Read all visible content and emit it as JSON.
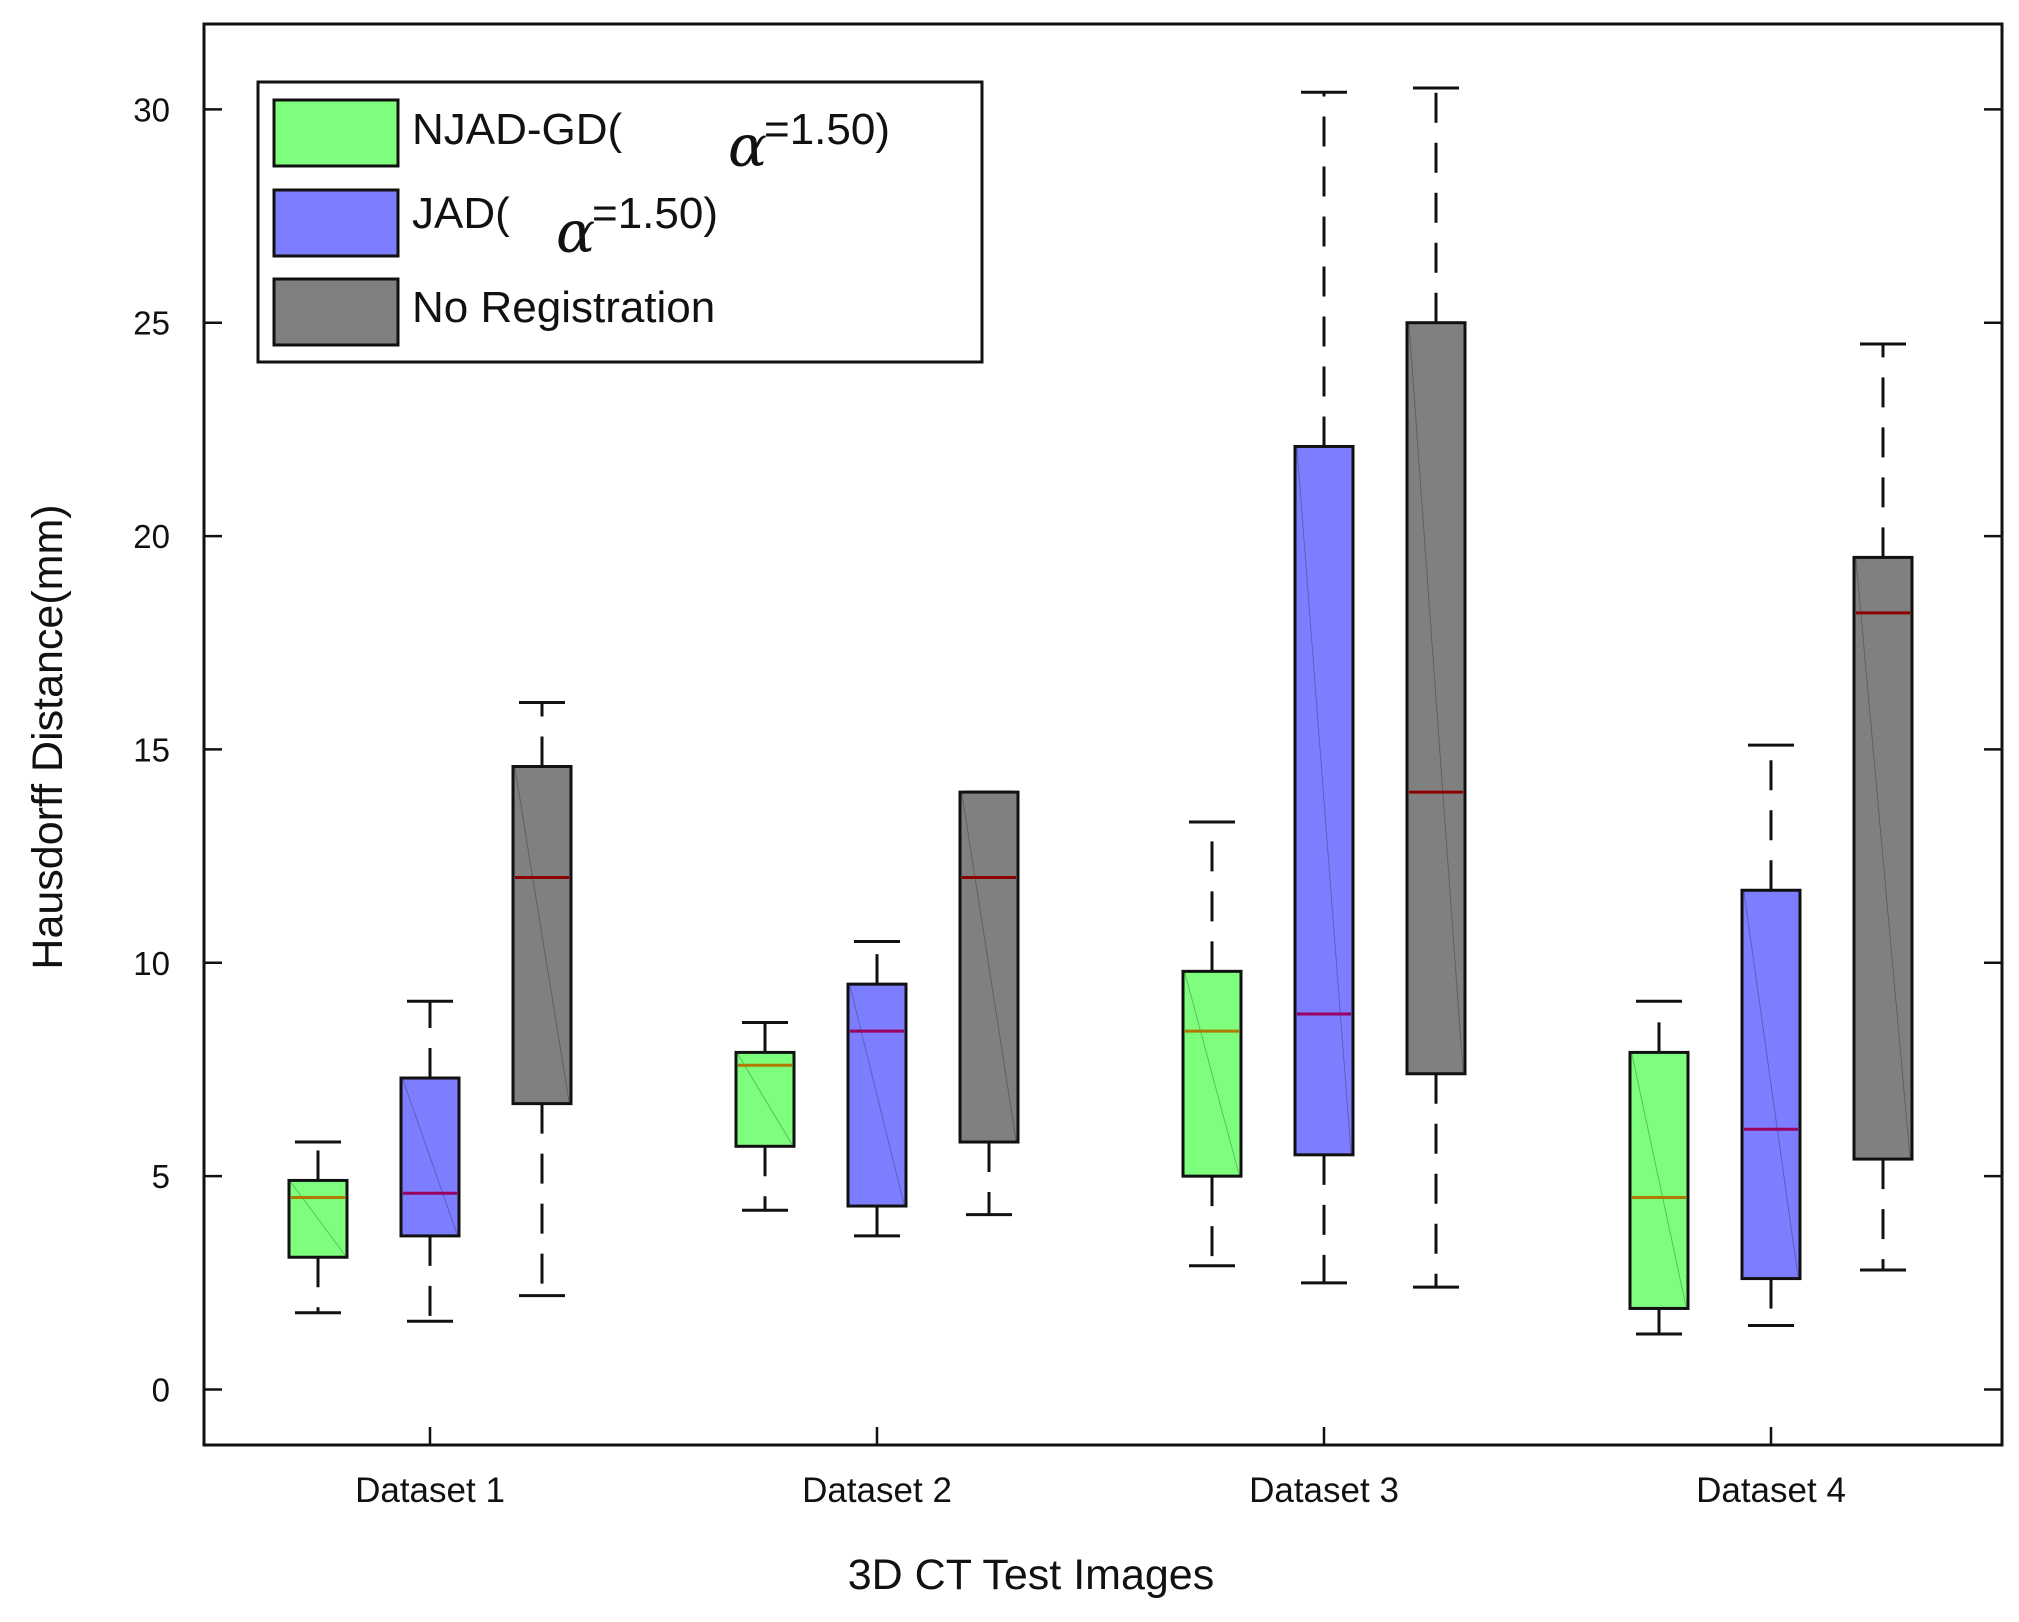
{
  "chart_data": {
    "type": "box",
    "title": "",
    "xlabel": "3D CT Test Images",
    "ylabel": "Hausdorff Distance(mm)",
    "ylim": [
      -1.3,
      32
    ],
    "yticks": [
      0,
      5,
      10,
      15,
      20,
      25,
      30
    ],
    "ytick_labels": [
      "0",
      "5",
      "10",
      "15",
      "20",
      "25",
      "30"
    ],
    "categories": [
      "Dataset 1",
      "Dataset 2",
      "Dataset 3",
      "Dataset 4"
    ],
    "legend": {
      "position": "top-left",
      "entries": [
        {
          "prefix": "NJAD-GD(",
          "symbol": "α",
          "suffix": "=1.50)"
        },
        {
          "prefix": "JAD(",
          "symbol": "α",
          "suffix": "=1.50)"
        },
        {
          "prefix": "No Registration",
          "symbol": "",
          "suffix": ""
        }
      ]
    },
    "series": [
      {
        "name": "NJAD-GD(α=1.50)",
        "fill": "#7dff7d",
        "median_color": "#b07a00",
        "boxes": [
          {
            "min": 1.8,
            "q1": 3.1,
            "median": 4.5,
            "q3": 4.9,
            "max": 5.8
          },
          {
            "min": 4.2,
            "q1": 5.7,
            "median": 7.6,
            "q3": 7.9,
            "max": 8.6
          },
          {
            "min": 2.9,
            "q1": 5.0,
            "median": 8.4,
            "q3": 9.8,
            "max": 13.3
          },
          {
            "min": 1.3,
            "q1": 1.9,
            "median": 4.5,
            "q3": 7.9,
            "max": 9.1
          }
        ]
      },
      {
        "name": "JAD(α=1.50)",
        "fill": "#7d7dff",
        "median_color": "#9a0060",
        "boxes": [
          {
            "min": 1.6,
            "q1": 3.6,
            "median": 4.6,
            "q3": 7.3,
            "max": 9.1
          },
          {
            "min": 3.6,
            "q1": 4.3,
            "median": 8.4,
            "q3": 9.5,
            "max": 10.5
          },
          {
            "min": 2.5,
            "q1": 5.5,
            "median": 8.8,
            "q3": 22.1,
            "max": 30.4
          },
          {
            "min": 1.5,
            "q1": 2.6,
            "median": 6.1,
            "q3": 11.7,
            "max": 15.1
          }
        ]
      },
      {
        "name": "No Registration",
        "fill": "#808080",
        "median_color": "#8b0000",
        "boxes": [
          {
            "min": 2.2,
            "q1": 6.7,
            "median": 12.0,
            "q3": 14.6,
            "max": 16.1
          },
          {
            "min": 4.1,
            "q1": 5.8,
            "median": 12.0,
            "q3": 14.0,
            "max": 14.0
          },
          {
            "min": 2.4,
            "q1": 7.4,
            "median": 14.0,
            "q3": 25.0,
            "max": 30.5
          },
          {
            "min": 2.8,
            "q1": 5.4,
            "median": 18.2,
            "q3": 19.5,
            "max": 24.5
          }
        ]
      }
    ]
  }
}
